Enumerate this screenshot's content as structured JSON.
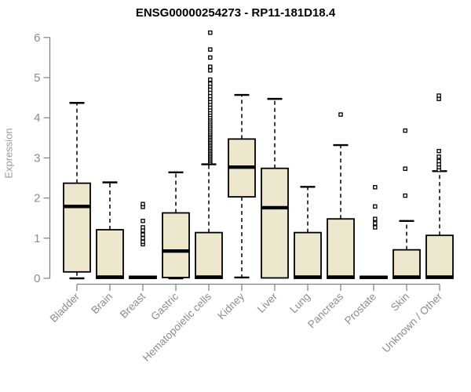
{
  "chart_data": {
    "type": "boxplot",
    "title": "ENSG00000254273 - RP11-181D18.4",
    "ylabel": "Expression",
    "xlabel": "",
    "ylim": [
      0,
      6
    ],
    "yticks": [
      0,
      1,
      2,
      3,
      4,
      5,
      6
    ],
    "grid": false,
    "legend": false,
    "categories": [
      "Bladder",
      "Brain",
      "Breast",
      "Gastric",
      "Hematopoietic cells",
      "Kidney",
      "Liver",
      "Lung",
      "Pancreas",
      "Prostate",
      "Skin",
      "Unknown / Other"
    ],
    "series": [
      {
        "name": "Bladder",
        "min": 0.0,
        "q1": 0.16,
        "median": 1.79,
        "q3": 2.37,
        "max": 4.37,
        "outliers": []
      },
      {
        "name": "Brain",
        "min": 0.0,
        "q1": 0.0,
        "median": 0.03,
        "q3": 1.21,
        "max": 2.39,
        "outliers": []
      },
      {
        "name": "Breast",
        "min": 0.0,
        "q1": 0.0,
        "median": 0.025,
        "q3": 0.05,
        "max": 0.05,
        "outliers": [
          0.85,
          0.91,
          1.0,
          1.09,
          1.19,
          1.27,
          1.43,
          1.78,
          1.85
        ]
      },
      {
        "name": "Gastric",
        "min": 0.0,
        "q1": 0.02,
        "median": 0.68,
        "q3": 1.63,
        "max": 2.64,
        "outliers": []
      },
      {
        "name": "Hematopoietic cells",
        "min": 0.0,
        "q1": 0.0,
        "median": 0.03,
        "q3": 1.14,
        "max": 2.84,
        "outliers": [
          2.89,
          2.93,
          2.97,
          3.01,
          3.05,
          3.09,
          3.13,
          3.17,
          3.21,
          3.25,
          3.29,
          3.33,
          3.37,
          3.41,
          3.45,
          3.49,
          3.53,
          3.57,
          3.61,
          3.66,
          3.71,
          3.76,
          3.81,
          3.86,
          3.91,
          3.96,
          4.01,
          4.07,
          4.13,
          4.19,
          4.26,
          4.33,
          4.4,
          4.47,
          4.54,
          4.62,
          4.7,
          4.78,
          4.85,
          4.95,
          5.18,
          5.27,
          5.5,
          5.7,
          6.12
        ]
      },
      {
        "name": "Kidney",
        "min": 0.02,
        "q1": 2.03,
        "median": 2.77,
        "q3": 3.47,
        "max": 4.57,
        "outliers": []
      },
      {
        "name": "Liver",
        "min": 0.01,
        "q1": 0.01,
        "median": 1.76,
        "q3": 2.74,
        "max": 4.47,
        "outliers": []
      },
      {
        "name": "Lung",
        "min": 0.0,
        "q1": 0.0,
        "median": 0.03,
        "q3": 1.14,
        "max": 2.28,
        "outliers": []
      },
      {
        "name": "Pancreas",
        "min": 0.0,
        "q1": 0.0,
        "median": 0.03,
        "q3": 1.48,
        "max": 3.32,
        "outliers": [
          4.08
        ]
      },
      {
        "name": "Prostate",
        "min": 0.0,
        "q1": 0.0,
        "median": 0.025,
        "q3": 0.05,
        "max": 0.05,
        "outliers": [
          1.27,
          1.37,
          1.48,
          1.79,
          2.27
        ]
      },
      {
        "name": "Skin",
        "min": 0.0,
        "q1": 0.0,
        "median": 0.03,
        "q3": 0.71,
        "max": 1.43,
        "outliers": [
          2.06,
          2.73,
          3.68
        ]
      },
      {
        "name": "Unknown / Other",
        "min": 0.0,
        "q1": 0.0,
        "median": 0.03,
        "q3": 1.07,
        "max": 2.67,
        "outliers": [
          2.7,
          2.77,
          2.84,
          2.92,
          3.03,
          3.17,
          4.47,
          4.55
        ]
      }
    ],
    "colors": {
      "box_fill": "#ece7cd",
      "box_border": "#000000",
      "median": "#000000",
      "whisker": "#000000",
      "outlier_stroke": "#000000",
      "outlier_fill": "#ffffff",
      "axis": "#7f7f7f",
      "tick_label": "#8c8c8c",
      "title": "#000000",
      "background": "#ffffff"
    }
  }
}
